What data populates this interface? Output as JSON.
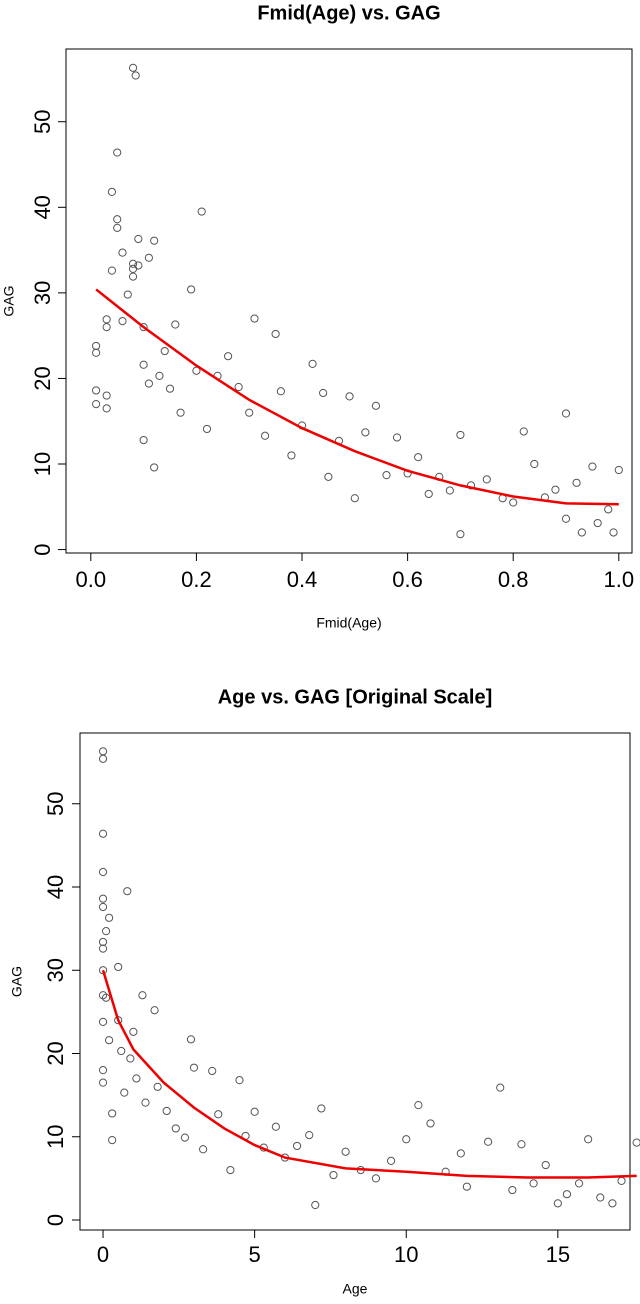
{
  "chart_data": [
    {
      "type": "scatter",
      "title": "Fmid(Age) vs. GAG",
      "x_label": "Fmid(Age)",
      "y_label": "GAG",
      "xlim": [
        -0.047,
        1.025
      ],
      "ylim": [
        -0.4,
        58.5
      ],
      "xticks": [
        {
          "value": 0,
          "label": "0.0"
        },
        0.2,
        0.4,
        0.6,
        0.8,
        {
          "value": 1,
          "label": "1.0"
        }
      ],
      "yticks": [
        0,
        10,
        20,
        30,
        40,
        50
      ],
      "x": [
        0.01,
        0.01,
        0.01,
        0.01,
        0.03,
        0.03,
        0.03,
        0.03,
        0.04,
        0.04,
        0.05,
        0.05,
        0.05,
        0.06,
        0.06,
        0.07,
        0.08,
        0.085,
        0.08,
        0.08,
        0.08,
        0.09,
        0.09,
        0.1,
        0.1,
        0.1,
        0.11,
        0.11,
        0.12,
        0.12,
        0.13,
        0.14,
        0.15,
        0.16,
        0.17,
        0.19,
        0.2,
        0.21,
        0.22,
        0.24,
        0.26,
        0.28,
        0.3,
        0.31,
        0.33,
        0.35,
        0.36,
        0.38,
        0.4,
        0.42,
        0.44,
        0.45,
        0.47,
        0.49,
        0.5,
        0.52,
        0.54,
        0.56,
        0.58,
        0.6,
        0.62,
        0.64,
        0.66,
        0.68,
        0.7,
        0.7,
        0.72,
        0.75,
        0.78,
        0.8,
        0.82,
        0.84,
        0.86,
        0.88,
        0.9,
        0.9,
        0.92,
        0.93,
        0.95,
        0.96,
        0.98,
        0.99,
        1.0
      ],
      "series": [
        {
          "color": "#555555",
          "values": [
            23.8,
            23,
            18.6,
            17,
            26.9,
            26,
            18,
            16.5,
            41.8,
            32.6,
            46.4,
            38.6,
            37.6,
            34.7,
            26.7,
            29.8,
            56.3,
            55.4,
            33.4,
            32.8,
            31.9,
            36.3,
            33.2,
            26,
            21.6,
            12.8,
            34.1,
            19.4,
            36.1,
            9.6,
            20.3,
            23.2,
            18.8,
            26.3,
            16,
            30.4,
            20.9,
            39.5,
            14.1,
            20.3,
            22.6,
            19,
            16,
            27,
            13.3,
            25.2,
            18.5,
            11,
            14.5,
            21.7,
            18.3,
            8.5,
            12.7,
            17.9,
            6,
            13.7,
            16.8,
            8.7,
            13.1,
            8.9,
            10.8,
            6.5,
            8.5,
            6.9,
            1.8,
            13.4,
            7.5,
            8.2,
            6,
            5.5,
            13.8,
            10,
            6.1,
            7,
            15.9,
            3.6,
            7.8,
            2,
            9.7,
            3.1,
            4.7,
            2,
            9.3
          ]
        }
      ],
      "fit": {
        "color": "#ee0000",
        "x": [
          0.01,
          0.1,
          0.2,
          0.3,
          0.4,
          0.5,
          0.6,
          0.7,
          0.8,
          0.9,
          1.0
        ],
        "values": [
          30.4,
          26,
          21.5,
          17.5,
          14.2,
          11.5,
          9.2,
          7.5,
          6.2,
          5.4,
          5.3
        ]
      }
    },
    {
      "type": "scatter",
      "title": "Age vs. GAG [Original Scale]",
      "x_label": "Age",
      "y_label": "GAG",
      "xlim": [
        -0.76,
        17.38
      ],
      "ylim": [
        -1.2,
        58.5
      ],
      "xticks": [
        0,
        5,
        10,
        15
      ],
      "yticks": [
        0,
        10,
        20,
        30,
        40,
        50
      ],
      "x": [
        0,
        0,
        0,
        0,
        0,
        0,
        0,
        0,
        0,
        0,
        0,
        0,
        0,
        0.1,
        0.1,
        0.2,
        0.2,
        0.3,
        0.3,
        0.5,
        0.5,
        0.6,
        0.7,
        0.8,
        0.9,
        1,
        1.1,
        1.3,
        1.4,
        1.7,
        1.8,
        2.1,
        2.4,
        2.7,
        2.9,
        3,
        3.3,
        3.6,
        3.8,
        4.2,
        4.5,
        4.7,
        5,
        5.3,
        5.7,
        6,
        6.4,
        6.8,
        7,
        7.2,
        7.6,
        8,
        8.5,
        9,
        9.5,
        10,
        10.4,
        10.8,
        11.3,
        11.8,
        12,
        12.7,
        13.1,
        13.5,
        13.8,
        14.2,
        14.6,
        15,
        15.3,
        15.7,
        16,
        16.4,
        16.8,
        17.1,
        17.6
      ],
      "series": [
        {
          "color": "#555555",
          "values": [
            56.3,
            55.4,
            46.4,
            41.8,
            38.6,
            37.6,
            33.4,
            32.6,
            30,
            27,
            23.8,
            18,
            16.5,
            34.7,
            26.7,
            36.3,
            21.6,
            12.8,
            9.6,
            30.4,
            24,
            20.3,
            15.3,
            39.5,
            19.4,
            22.6,
            17,
            27,
            14.1,
            25.2,
            16,
            13.1,
            11,
            9.9,
            21.7,
            18.3,
            8.5,
            17.9,
            12.7,
            6,
            16.8,
            10.1,
            13,
            8.7,
            11.2,
            7.5,
            8.9,
            10.2,
            1.8,
            13.4,
            5.4,
            8.2,
            6,
            5,
            7.1,
            9.7,
            13.8,
            11.6,
            5.8,
            8,
            4,
            9.4,
            15.9,
            3.6,
            9.1,
            4.4,
            6.6,
            2,
            3.1,
            4.4,
            9.7,
            2.7,
            2,
            4.7,
            9.3
          ]
        }
      ],
      "fit": {
        "color": "#ee0000",
        "x": [
          0,
          0.5,
          1,
          2,
          3,
          4,
          5,
          6,
          8,
          10,
          12,
          14,
          16,
          17.6
        ],
        "values": [
          30,
          24,
          20.5,
          16.5,
          13.5,
          11,
          9,
          7.5,
          6.2,
          5.8,
          5.3,
          5.1,
          5.1,
          5.3
        ]
      }
    }
  ]
}
